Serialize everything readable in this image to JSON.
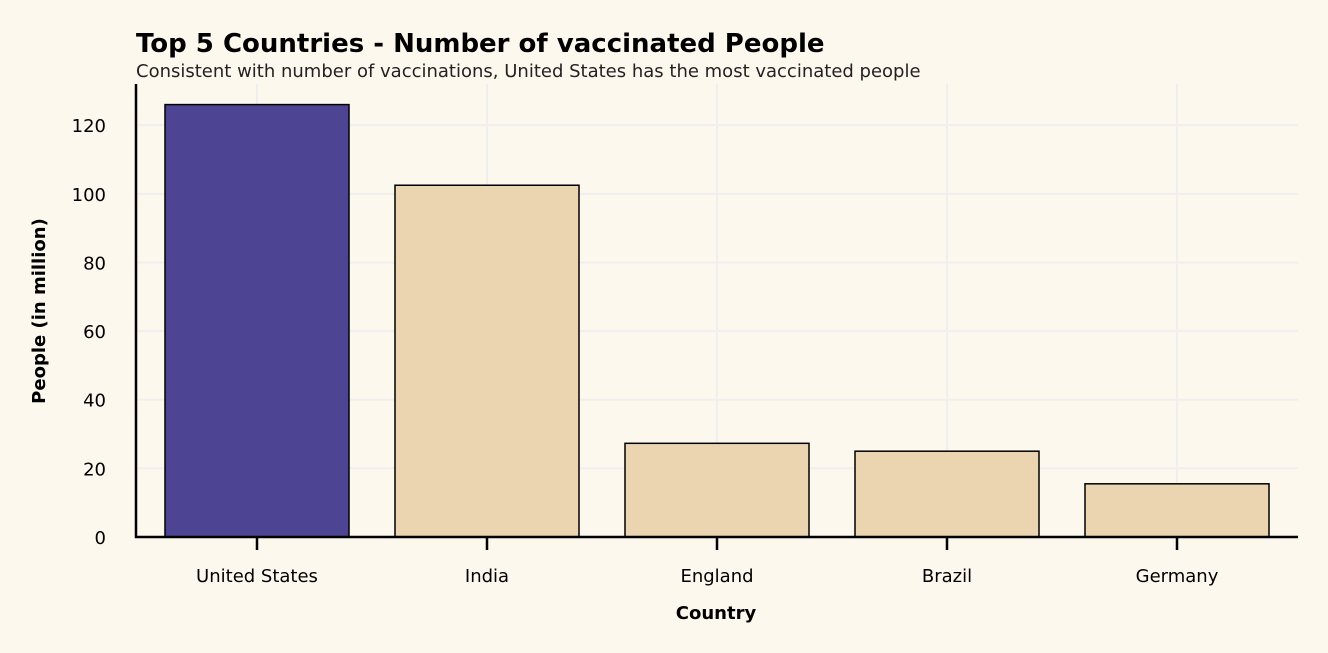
{
  "chart_data": {
    "type": "bar",
    "title": "Top 5 Countries - Number of vaccinated People",
    "subtitle": "Consistent with number of vaccinations, United States has the most vaccinated people",
    "xlabel": "Country",
    "ylabel": "People (in million)",
    "categories": [
      "United States",
      "India",
      "England",
      "Brazil",
      "Germany"
    ],
    "values": [
      126,
      102.5,
      27.3,
      25,
      15.5
    ],
    "ylim": [
      0,
      132
    ],
    "yticks": [
      0,
      20,
      40,
      60,
      80,
      100,
      120
    ],
    "grid": true,
    "highlight_index": 0,
    "colors": {
      "highlight": "#4d4593",
      "bar": "#ebd4b0",
      "edge": "#000000",
      "grid": "#efefef",
      "background": "#fdf8ee"
    }
  }
}
